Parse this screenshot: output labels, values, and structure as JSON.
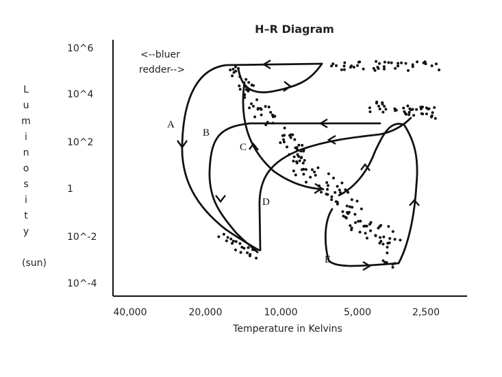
{
  "title": "H–R Diagram",
  "y_axis": {
    "label_letters": [
      "L",
      "u",
      "m",
      "i",
      "n",
      "o",
      "s",
      "i",
      "t",
      "y"
    ],
    "unit": "(sun)",
    "ticks": [
      "10^6",
      "10^4",
      "10^2",
      "1",
      "10^-2",
      "10^-4"
    ]
  },
  "x_axis": {
    "label": "Temperature in Kelvins",
    "ticks": [
      "40,000",
      "20,000",
      "10,000",
      "5,000",
      "2,500"
    ]
  },
  "annotations": {
    "bluer": "<--bluer",
    "redder": "redder-->"
  },
  "tracks": [
    "A",
    "B",
    "C",
    "D",
    "E"
  ]
}
